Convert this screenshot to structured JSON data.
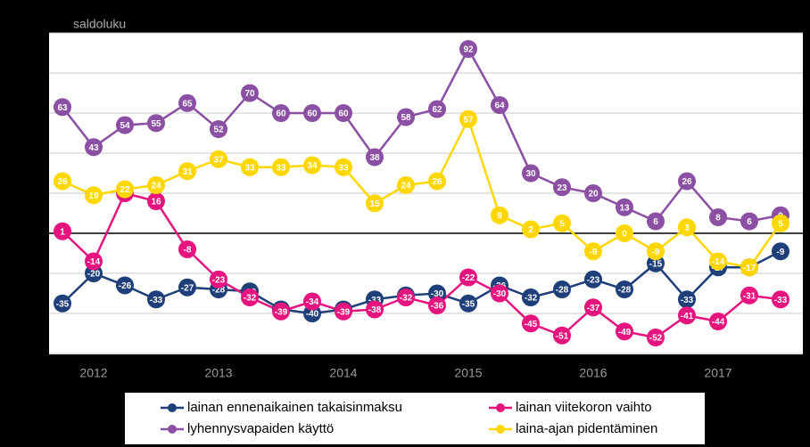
{
  "chart_data": {
    "type": "line",
    "y_label": "saldoluku",
    "categories": [
      null,
      "2012",
      null,
      null,
      null,
      "2013",
      null,
      null,
      null,
      "2014",
      null,
      null,
      null,
      "2015",
      null,
      null,
      null,
      "2016",
      null,
      null,
      null,
      "2017",
      null,
      null
    ],
    "ylim": [
      -60,
      100
    ],
    "yticks": [
      -60,
      -40,
      -20,
      0,
      20,
      40,
      60,
      80,
      100
    ],
    "grid": true,
    "series": [
      {
        "name": "lainan ennenaikainen takaisinmaksu",
        "color": "#1f3f7a",
        "values": [
          -35,
          -20,
          -26,
          -33,
          -27,
          -28,
          -29,
          -38,
          -40,
          -38,
          -33,
          -31,
          -30,
          -35,
          -26,
          -32,
          -28,
          -23,
          -28,
          -15,
          -33,
          -17,
          -17,
          -9
        ]
      },
      {
        "name": "lainan viitekoron vaihto",
        "color": "#e6147f",
        "values": [
          1,
          -14,
          20,
          16,
          -8,
          -23,
          -32,
          -39,
          -34,
          -39,
          -38,
          -32,
          -36,
          -22,
          -30,
          -45,
          -51,
          -37,
          -49,
          -52,
          -41,
          -44,
          -31,
          -33
        ]
      },
      {
        "name": "lyhennysvapaiden käyttö",
        "color": "#8b4fa3",
        "values": [
          63,
          43,
          54,
          55,
          65,
          52,
          70,
          60,
          60,
          60,
          38,
          58,
          62,
          92,
          64,
          30,
          23,
          20,
          13,
          6,
          26,
          8,
          6,
          9
        ]
      },
      {
        "name": "laina-ajan pidentäminen",
        "color": "#ffd700",
        "values": [
          26,
          19,
          22,
          24,
          31,
          37,
          33,
          33,
          34,
          33,
          15,
          24,
          26,
          57,
          9,
          2,
          5,
          -9,
          0,
          -9,
          3,
          -14,
          -17,
          5
        ]
      }
    ]
  }
}
